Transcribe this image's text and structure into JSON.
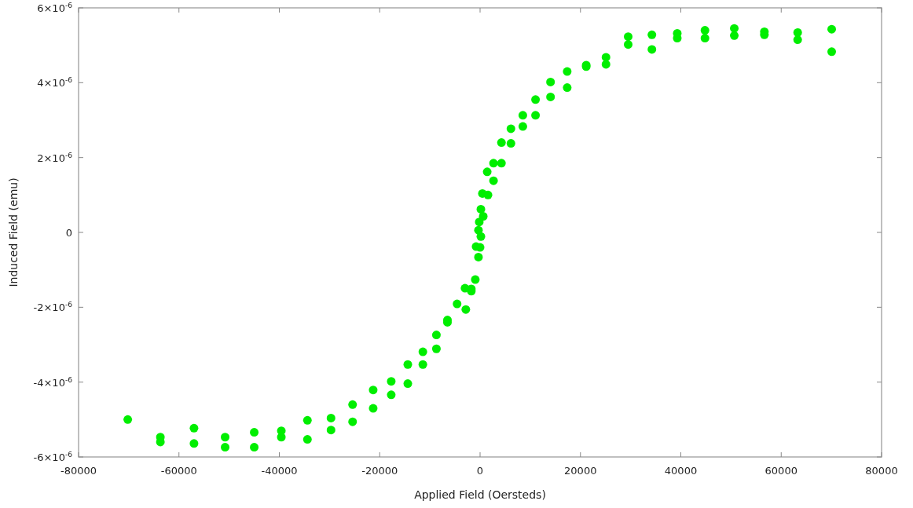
{
  "chart_data": {
    "type": "scatter",
    "xlabel": "Applied Field (Oersteds)",
    "ylabel": "Induced Field (emu)",
    "xlim": [
      -80000,
      80000
    ],
    "xticks": [
      -80000,
      -60000,
      -40000,
      -20000,
      0,
      20000,
      40000,
      60000,
      80000
    ],
    "ylim": [
      -6e-06,
      6e-06
    ],
    "yticks": [
      {
        "value": -6e-06,
        "label": "-6×10$^{-6}$"
      },
      {
        "value": -4e-06,
        "label": "-4×10$^{-6}$"
      },
      {
        "value": -2e-06,
        "label": "-2×10$^{-6}$"
      },
      0,
      {
        "value": 2e-06,
        "label": "2×10$^{-6}$"
      },
      {
        "value": 4e-06,
        "label": "4×10$^{-6}$"
      },
      {
        "value": 6e-06,
        "label": "6×10$^{-6}$"
      }
    ],
    "grid": false,
    "marker": "circle",
    "series": [
      {
        "color": "#00ee00",
        "x": [
          -70200,
          -63700,
          -63700,
          -57000,
          -57000,
          -50800,
          -50800,
          -45000,
          -45000,
          -39600,
          -39600,
          -34400,
          -34400,
          -29700,
          -29700,
          -25400,
          -25400,
          -21300,
          -21300,
          -17700,
          -17700,
          -14400,
          -14400,
          -11400,
          -11400,
          -8700,
          -8700,
          -6500,
          -6500,
          -4580,
          -2840,
          -3000,
          -1740,
          -1740,
          -950,
          -320,
          -790,
          0,
          160,
          -320,
          -160,
          630,
          160,
          470,
          1580,
          2680,
          1420,
          2680,
          4260,
          4260,
          6150,
          6150,
          8520,
          8520,
          11050,
          11050,
          14040,
          14040,
          17360,
          17360,
          21150,
          21150,
          25090,
          25090,
          29510,
          29510,
          34240,
          34240,
          39290,
          39290,
          44810,
          44810,
          50650,
          50650,
          56650,
          56650,
          63280,
          63280,
          70060,
          70060
        ],
        "values": [
          -5e-06,
          -5.47e-06,
          -5.6e-06,
          -5.23e-06,
          -5.64e-06,
          -5.47e-06,
          -5.74e-06,
          -5.34e-06,
          -5.74e-06,
          -5.3e-06,
          -5.47e-06,
          -5.02e-06,
          -5.53e-06,
          -4.96e-06,
          -5.28e-06,
          -4.6e-06,
          -5.06e-06,
          -4.21e-06,
          -4.7e-06,
          -3.98e-06,
          -4.34e-06,
          -3.53e-06,
          -4.04e-06,
          -3.19e-06,
          -3.53e-06,
          -2.74e-06,
          -3.11e-06,
          -2.34e-06,
          -2.4e-06,
          -1.91e-06,
          -2.06e-06,
          -1.49e-06,
          -1.51e-06,
          -1.57e-06,
          -1.26e-06,
          -6.6e-07,
          -3.8e-07,
          -4e-07,
          -1.1e-07,
          6e-08,
          2.8e-07,
          4.3e-07,
          6.2e-07,
          1.04e-06,
          1e-06,
          1.38e-06,
          1.62e-06,
          1.85e-06,
          1.85e-06,
          2.4e-06,
          2.38e-06,
          2.77e-06,
          2.83e-06,
          3.13e-06,
          3.13e-06,
          3.55e-06,
          3.62e-06,
          4.02e-06,
          3.87e-06,
          4.3e-06,
          4.47e-06,
          4.43e-06,
          4.49e-06,
          4.68e-06,
          5.02e-06,
          5.23e-06,
          4.89e-06,
          5.28e-06,
          5.19e-06,
          5.32e-06,
          5.19e-06,
          5.4e-06,
          5.26e-06,
          5.45e-06,
          5.28e-06,
          5.36e-06,
          5.15e-06,
          5.34e-06,
          5.43e-06,
          4.83e-06
        ]
      }
    ]
  }
}
